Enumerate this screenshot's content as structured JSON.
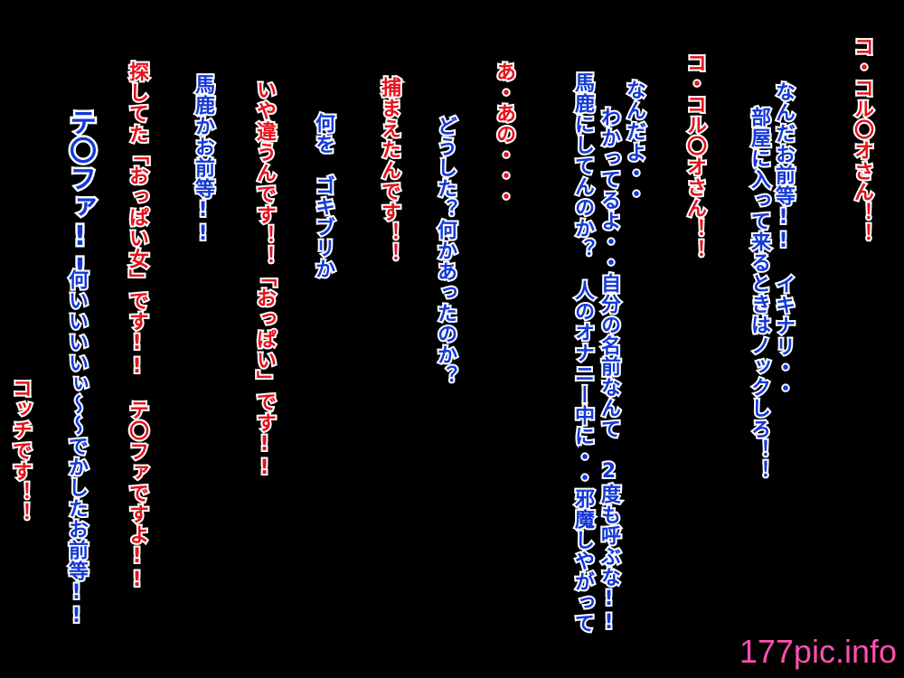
{
  "dialogue": {
    "l1": "コ・コル〇オさん！！",
    "l2": "なんだお前等!!　イキナリ・・",
    "l3": "部屋に入って来るときはノックしろ！！",
    "l4": "コ・コル〇オさん！！",
    "l5": "なんだよ・・",
    "l6": "わかってるよ・・自分の名前なんて　2度も呼ぶな!!",
    "l7": "馬鹿にしてんのか？　人のオナニー中に・・邪魔しやがって",
    "l8": "あ・あの・・・",
    "l9": "どうした？何かあったのか？",
    "l10": "捕まえたんです！！",
    "l11": "何を　ゴキブリか",
    "l12": "いや違うんです！！「おっぱい」です!!",
    "l13": "馬鹿かお前等!!",
    "l14": "探してた「おっぱい女」です!!　テ〇ファですよ!!",
    "l15": "テ〇ファ!!",
    "l16": "何いいいいぃ～～でかしたお前等!!",
    "l17": "コッチです！！"
  },
  "watermark": "177pic.info",
  "colors": {
    "background": "#000000",
    "red_text": "#e8101a",
    "blue_text": "#1438d8",
    "outline": "#ffffff",
    "watermark": "#ff4fae"
  }
}
